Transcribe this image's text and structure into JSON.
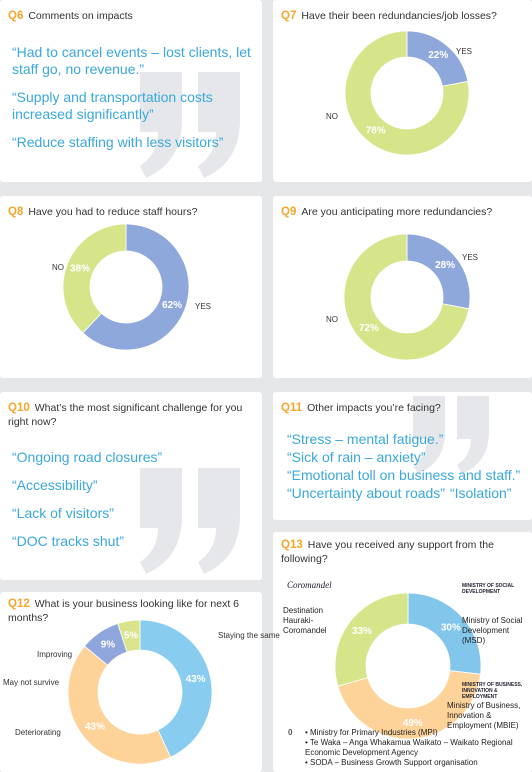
{
  "q6": {
    "number": "Q6",
    "question": "Comments on impacts",
    "quotes": [
      "“Had to cancel events – lost clients, let staff go, no revenue.”",
      "“Supply and transportation costs increased significantly”",
      "“Reduce staffing with less visitors”"
    ]
  },
  "q10": {
    "number": "Q10",
    "question": "What’s the most significant challenge for you right now?",
    "quotes": [
      "“Ongoing road closures”",
      "“Accessibility”",
      "“Lack of visitors”",
      "“DOC tracks shut”"
    ]
  },
  "q11": {
    "number": "Q11",
    "question": "Other impacts you’re facing?",
    "quotes": [
      "“Stress – mental fatigue.”",
      "“Sick of rain – anxiety”",
      "“Emotional toll on business and staff.”",
      "“Uncertainty about roads”",
      "“Isolation”"
    ]
  },
  "chart_data": [
    {
      "type": "pie",
      "number": "Q7",
      "title": "Have their been redundancies/job losses?",
      "categories": [
        "YES",
        "NO"
      ],
      "values": [
        22,
        78
      ],
      "value_labels": [
        "22%",
        "78%"
      ],
      "colors": [
        "#8fa8dc",
        "#d6e48a"
      ]
    },
    {
      "type": "pie",
      "number": "Q8",
      "title": "Have you had to reduce staff hours?",
      "categories": [
        "YES",
        "NO"
      ],
      "values": [
        62,
        38
      ],
      "value_labels": [
        "62%",
        "38%"
      ],
      "colors": [
        "#8fa8dc",
        "#d6e48a"
      ]
    },
    {
      "type": "pie",
      "number": "Q9",
      "title": "Are you anticipating more redundancies?",
      "categories": [
        "YES",
        "NO"
      ],
      "values": [
        28,
        72
      ],
      "value_labels": [
        "28%",
        "72%"
      ],
      "colors": [
        "#8fa8dc",
        "#d6e48a"
      ]
    },
    {
      "type": "pie",
      "number": "Q12",
      "title": "What is your business looking like for next 6 months?",
      "categories": [
        "Staying the same",
        "Deteriorating",
        "May not survive",
        "Improving"
      ],
      "values": [
        43,
        43,
        9,
        5
      ],
      "value_labels": [
        "43%",
        "43%",
        "9%",
        "5%"
      ],
      "colors": [
        "#88cdf0",
        "#fdd39a",
        "#8ea6db",
        "#d9e48c"
      ]
    },
    {
      "type": "pie",
      "number": "Q13",
      "title": "Have you received any support from the following?",
      "categories": [
        "Ministry of Social Development (MSD)",
        "Ministry of Business, Innovation & Employment (MBIE)",
        "Destination Hauraki-Coromandel"
      ],
      "values": [
        30,
        49,
        33
      ],
      "value_labels": [
        "30%",
        "49%",
        "33%"
      ],
      "colors": [
        "#82c6ec",
        "#fdd39a",
        "#d6e48a"
      ]
    }
  ],
  "q13_logos": [
    "Coromandel",
    "MINISTRY OF SOCIAL DEVELOPMENT",
    "MINISTRY OF BUSINESS, INNOVATION & EMPLOYMENT"
  ],
  "q13_zero": {
    "value_label": "0",
    "items": [
      "Ministry for Primary Industries (MPI)",
      "Te Waka – Anga Whakamua Waikato – Waikato Regional Economic Development Agency",
      "SODA – Business Growth Support organisation"
    ]
  }
}
